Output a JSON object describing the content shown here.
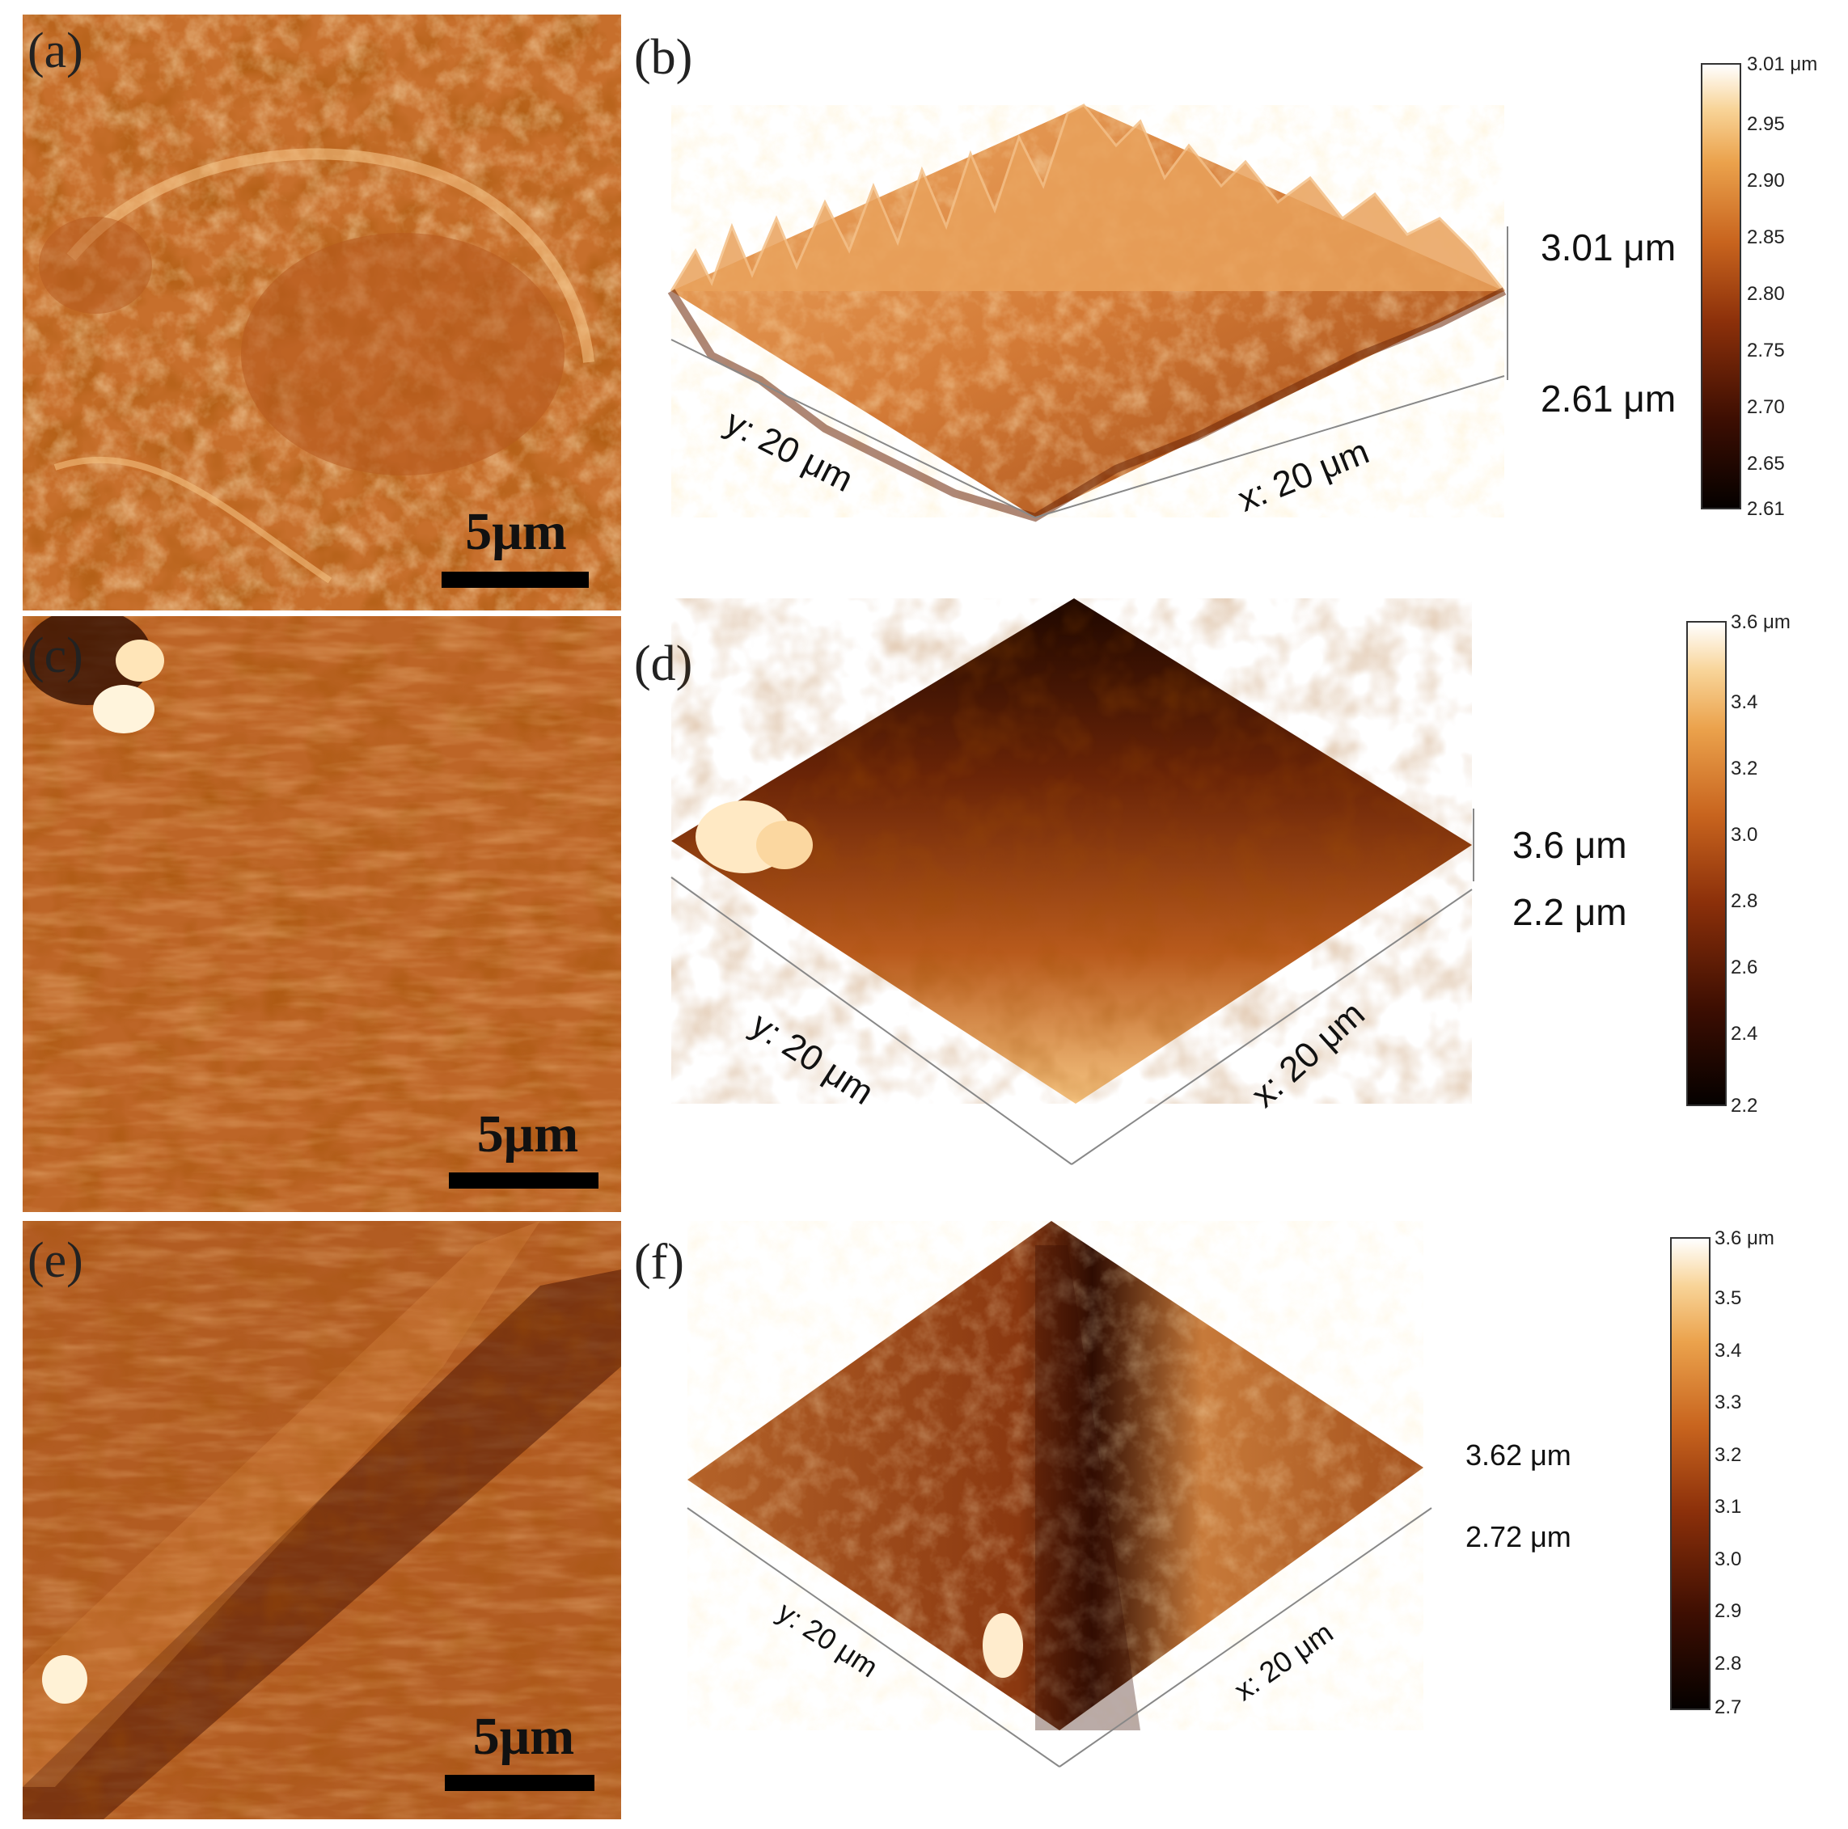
{
  "panels": {
    "a": {
      "label": "(a)",
      "scale_bar": "5μm"
    },
    "b": {
      "label": "(b)",
      "z_max": "3.01 μm",
      "z_min": "2.61 μm",
      "x_axis": "x: 20 μm",
      "y_axis": "y: 20 μm",
      "colorbar": {
        "top": "3.01 μm",
        "ticks": [
          "2.95",
          "2.90",
          "2.85",
          "2.80",
          "2.75",
          "2.70",
          "2.65",
          "2.61"
        ]
      }
    },
    "c": {
      "label": "(c)",
      "scale_bar": "5μm"
    },
    "d": {
      "label": "(d)",
      "z_max": "3.6 μm",
      "z_min": "2.2 μm",
      "x_axis": "x: 20 μm",
      "y_axis": "y: 20 μm",
      "colorbar": {
        "top": "3.6 μm",
        "ticks": [
          "3.4",
          "3.2",
          "3.0",
          "2.8",
          "2.6",
          "2.4",
          "2.2"
        ]
      }
    },
    "e": {
      "label": "(e)",
      "scale_bar": "5μm"
    },
    "f": {
      "label": "(f)",
      "z_max": "3.62 μm",
      "z_min": "2.72 μm",
      "x_axis": "x: 20 μm",
      "y_axis": "y: 20 μm",
      "colorbar": {
        "top": "3.6 μm",
        "ticks": [
          "3.5",
          "3.4",
          "3.3",
          "3.2",
          "3.1",
          "3.0",
          "2.9",
          "2.8",
          "2.7"
        ]
      }
    }
  },
  "colors": {
    "afm_dark": "#1a0500",
    "afm_mid": "#b8521a",
    "afm_light": "#ffffff"
  }
}
